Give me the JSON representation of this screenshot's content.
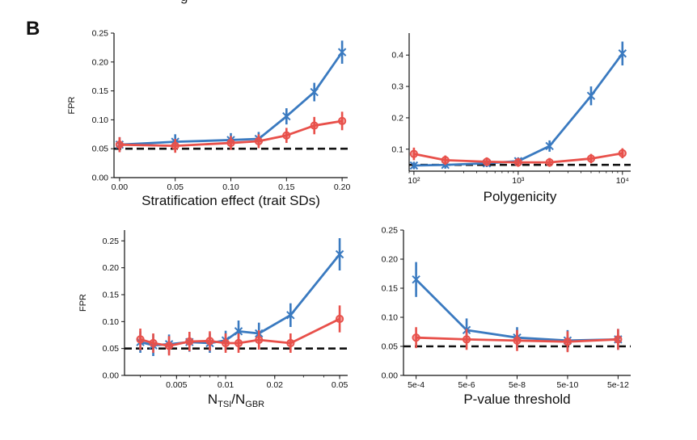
{
  "panel_letter": "B",
  "top_fragment": "g",
  "colors": {
    "blue": "#3a7ac0",
    "red": "#e8504a",
    "baseline": "#111111"
  },
  "chart_data": [
    {
      "type": "line",
      "title": "",
      "xlabel": "Stratification effect (trait SDs)",
      "ylabel": "FPR",
      "xlim": [
        -0.005,
        0.205
      ],
      "ylim": [
        0,
        0.25
      ],
      "xticks": [
        0,
        0.05,
        0.1,
        0.15,
        0.2
      ],
      "xticklabels": [
        "0.00",
        "0.05",
        "0.10",
        "0.15",
        "0.20"
      ],
      "yticks": [
        0,
        0.05,
        0.1,
        0.15,
        0.2,
        0.25
      ],
      "yticklabels": [
        "0.00",
        "0.05",
        "0.10",
        "0.15",
        "0.20",
        "0.25"
      ],
      "baseline": 0.05,
      "series": [
        {
          "color": "blue",
          "marker": "x",
          "x": [
            0,
            0.05,
            0.1,
            0.125,
            0.15,
            0.175,
            0.2
          ],
          "y": [
            0.057,
            0.062,
            0.065,
            0.067,
            0.106,
            0.148,
            0.217
          ],
          "err": [
            0.013,
            0.013,
            0.012,
            0.012,
            0.014,
            0.016,
            0.02
          ]
        },
        {
          "color": "red",
          "marker": "o",
          "x": [
            0,
            0.05,
            0.1,
            0.125,
            0.15,
            0.175,
            0.2
          ],
          "y": [
            0.057,
            0.055,
            0.06,
            0.063,
            0.073,
            0.09,
            0.098
          ],
          "err": [
            0.013,
            0.012,
            0.012,
            0.012,
            0.013,
            0.015,
            0.016
          ]
        }
      ]
    },
    {
      "type": "line",
      "title": "",
      "xlabel": "Polygenicity",
      "ylabel": "",
      "xscale": "log",
      "xlim": [
        90,
        12000
      ],
      "ylim": [
        0.03,
        0.47
      ],
      "xticks": [
        100,
        1000,
        10000
      ],
      "xticklabels": [
        "10²",
        "10³",
        "10⁴"
      ],
      "yticks": [
        0.1,
        0.2,
        0.3,
        0.4
      ],
      "yticklabels": [
        "0.1",
        "0.2",
        "0.3",
        "0.4"
      ],
      "baseline": 0.05,
      "series": [
        {
          "color": "blue",
          "marker": "x",
          "x": [
            100,
            200,
            500,
            1000,
            2000,
            5000,
            10000
          ],
          "y": [
            0.048,
            0.05,
            0.055,
            0.062,
            0.11,
            0.27,
            0.405
          ],
          "err": [
            0.012,
            0.012,
            0.012,
            0.012,
            0.018,
            0.03,
            0.038
          ]
        },
        {
          "color": "red",
          "marker": "o",
          "x": [
            100,
            200,
            500,
            1000,
            2000,
            5000,
            10000
          ],
          "y": [
            0.085,
            0.065,
            0.06,
            0.058,
            0.058,
            0.07,
            0.087
          ],
          "err": [
            0.02,
            0.015,
            0.014,
            0.014,
            0.014,
            0.015,
            0.016
          ]
        }
      ]
    },
    {
      "type": "line",
      "title": "",
      "xlabel": "N_TSI/N_GBR",
      "ylabel": "FPR",
      "xscale": "log",
      "xlim": [
        0.0024,
        0.056
      ],
      "ylim": [
        0,
        0.27
      ],
      "xticks": [
        0.005,
        0.01,
        0.02,
        0.05
      ],
      "xticklabels": [
        "0.005",
        "0.01",
        "0.02",
        "0.05"
      ],
      "yticks": [
        0,
        0.05,
        0.1,
        0.15,
        0.2,
        0.25
      ],
      "yticklabels": [
        "0.00",
        "0.05",
        "0.10",
        "0.15",
        "0.20",
        "0.25"
      ],
      "baseline": 0.05,
      "series": [
        {
          "color": "blue",
          "marker": "x",
          "x": [
            0.003,
            0.0036,
            0.0045,
            0.006,
            0.008,
            0.01,
            0.012,
            0.016,
            0.025,
            0.05
          ],
          "y": [
            0.062,
            0.056,
            0.058,
            0.062,
            0.06,
            0.065,
            0.082,
            0.078,
            0.112,
            0.225
          ],
          "err": [
            0.02,
            0.02,
            0.018,
            0.018,
            0.018,
            0.018,
            0.02,
            0.02,
            0.022,
            0.03
          ]
        },
        {
          "color": "red",
          "marker": "o",
          "x": [
            0.003,
            0.0036,
            0.0045,
            0.006,
            0.008,
            0.01,
            0.012,
            0.016,
            0.025,
            0.05
          ],
          "y": [
            0.067,
            0.06,
            0.055,
            0.063,
            0.064,
            0.06,
            0.06,
            0.066,
            0.06,
            0.105
          ],
          "err": [
            0.02,
            0.018,
            0.018,
            0.018,
            0.018,
            0.018,
            0.018,
            0.018,
            0.018,
            0.025
          ]
        }
      ]
    },
    {
      "type": "line",
      "title": "",
      "xlabel": "P-value threshold",
      "ylabel": "",
      "xlim": [
        -0.25,
        4.25
      ],
      "ylim": [
        0,
        0.25
      ],
      "xticks": [
        0,
        1,
        2,
        3,
        4
      ],
      "xticklabels": [
        "5e-4",
        "5e-6",
        "5e-8",
        "5e-10",
        "5e-12"
      ],
      "yticks": [
        0,
        0.05,
        0.1,
        0.15,
        0.2,
        0.25
      ],
      "yticklabels": [
        "0.00",
        "0.05",
        "0.10",
        "0.15",
        "0.20",
        "0.25"
      ],
      "baseline": 0.05,
      "series": [
        {
          "color": "blue",
          "marker": "x",
          "x": [
            0,
            1,
            2,
            3,
            4
          ],
          "y": [
            0.165,
            0.078,
            0.065,
            0.06,
            0.062
          ],
          "err": [
            0.03,
            0.02,
            0.018,
            0.018,
            0.018
          ]
        },
        {
          "color": "red",
          "marker": "o",
          "x": [
            0,
            1,
            2,
            3,
            4
          ],
          "y": [
            0.065,
            0.062,
            0.06,
            0.058,
            0.062
          ],
          "err": [
            0.018,
            0.018,
            0.018,
            0.018,
            0.018
          ]
        }
      ]
    }
  ]
}
